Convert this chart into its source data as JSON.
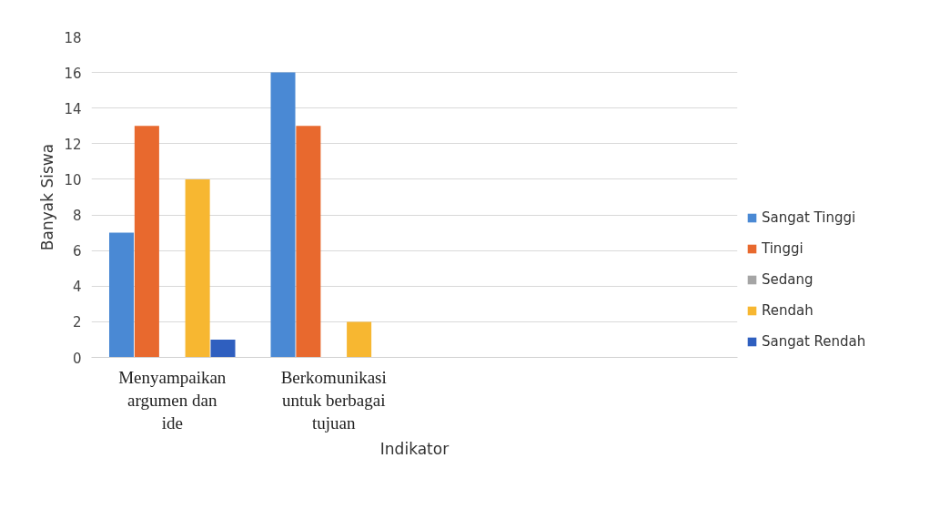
{
  "chart_data": {
    "type": "bar",
    "xlabel": "Indikator",
    "ylabel": "Banyak Siswa",
    "categories": [
      "Menyampaikan argumen dan ide",
      "Berkomunikasi untuk berbagai tujuan",
      null,
      null
    ],
    "series": [
      {
        "name": "Sangat Tinggi",
        "color": "#4a89d4",
        "values": [
          7,
          16,
          null,
          null
        ]
      },
      {
        "name": "Tinggi",
        "color": "#e8692e",
        "values": [
          13,
          13,
          null,
          null
        ]
      },
      {
        "name": "Sedang",
        "color": "#a5a5a5",
        "values": [
          0,
          0,
          null,
          null
        ]
      },
      {
        "name": "Rendah",
        "color": "#f7b731",
        "values": [
          10,
          2,
          null,
          null
        ]
      },
      {
        "name": "Sangat Rendah",
        "color": "#2f5fbf",
        "values": [
          1,
          0,
          null,
          null
        ]
      }
    ],
    "ylim": [
      0,
      18
    ],
    "yticks": [
      0,
      2,
      4,
      6,
      8,
      10,
      12,
      14,
      16,
      18
    ],
    "grid": "y",
    "legend": "right"
  }
}
